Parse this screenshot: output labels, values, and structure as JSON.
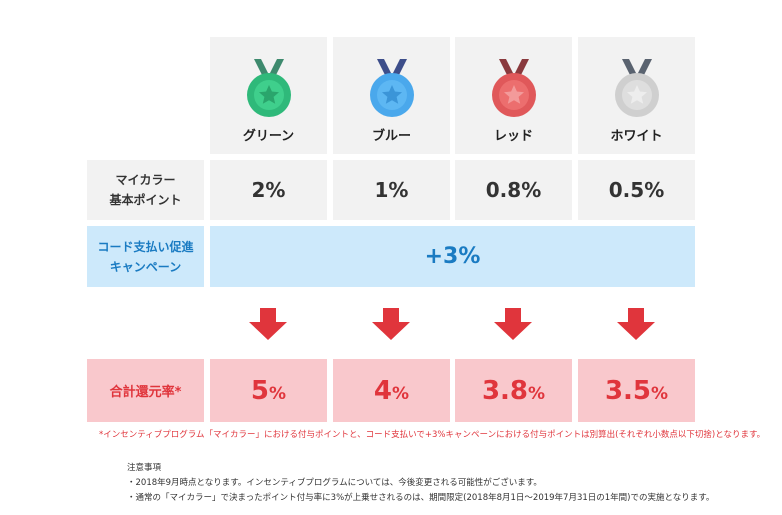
{
  "colors": {
    "green": "#2fb97a",
    "blue": "#4aa8ec",
    "red": "#e0585a",
    "white": "#cfcfcf",
    "accent_blue": "#1a7bc2",
    "accent_red": "#e0353c"
  },
  "medals": [
    {
      "name": "グリーン",
      "icon": "green-medal-icon"
    },
    {
      "name": "ブルー",
      "icon": "blue-medal-icon"
    },
    {
      "name": "レッド",
      "icon": "red-medal-icon"
    },
    {
      "name": "ホワイト",
      "icon": "white-medal-icon"
    }
  ],
  "base_points": {
    "label_line1": "マイカラー",
    "label_line2": "基本ポイント",
    "values": [
      "2%",
      "1%",
      "0.8%",
      "0.5%"
    ]
  },
  "campaign": {
    "label_line1": "コード支払い促進",
    "label_line2": "キャンペーン",
    "value": "+3%"
  },
  "total": {
    "label": "合計還元率*",
    "values": [
      {
        "num": "5",
        "unit": "%"
      },
      {
        "num": "4",
        "unit": "%"
      },
      {
        "num": "3.8",
        "unit": "%"
      },
      {
        "num": "3.5",
        "unit": "%"
      }
    ]
  },
  "footnote": "*インセンティブプログラム「マイカラー」における付与ポイントと、コード支払いで+3%キャンペーンにおける付与ポイントは別算出(それぞれ小数点以下切捨)となります。",
  "notes": {
    "title": "注意事項",
    "items": [
      "・2018年9月時点となります。インセンティブプログラムについては、今後変更される可能性がございます。",
      "・通常の「マイカラー」で決まったポイント付与率に3%が上乗せされるのは、期間限定(2018年8月1日～2019年7月31日の1年間)での実施となります。"
    ]
  }
}
